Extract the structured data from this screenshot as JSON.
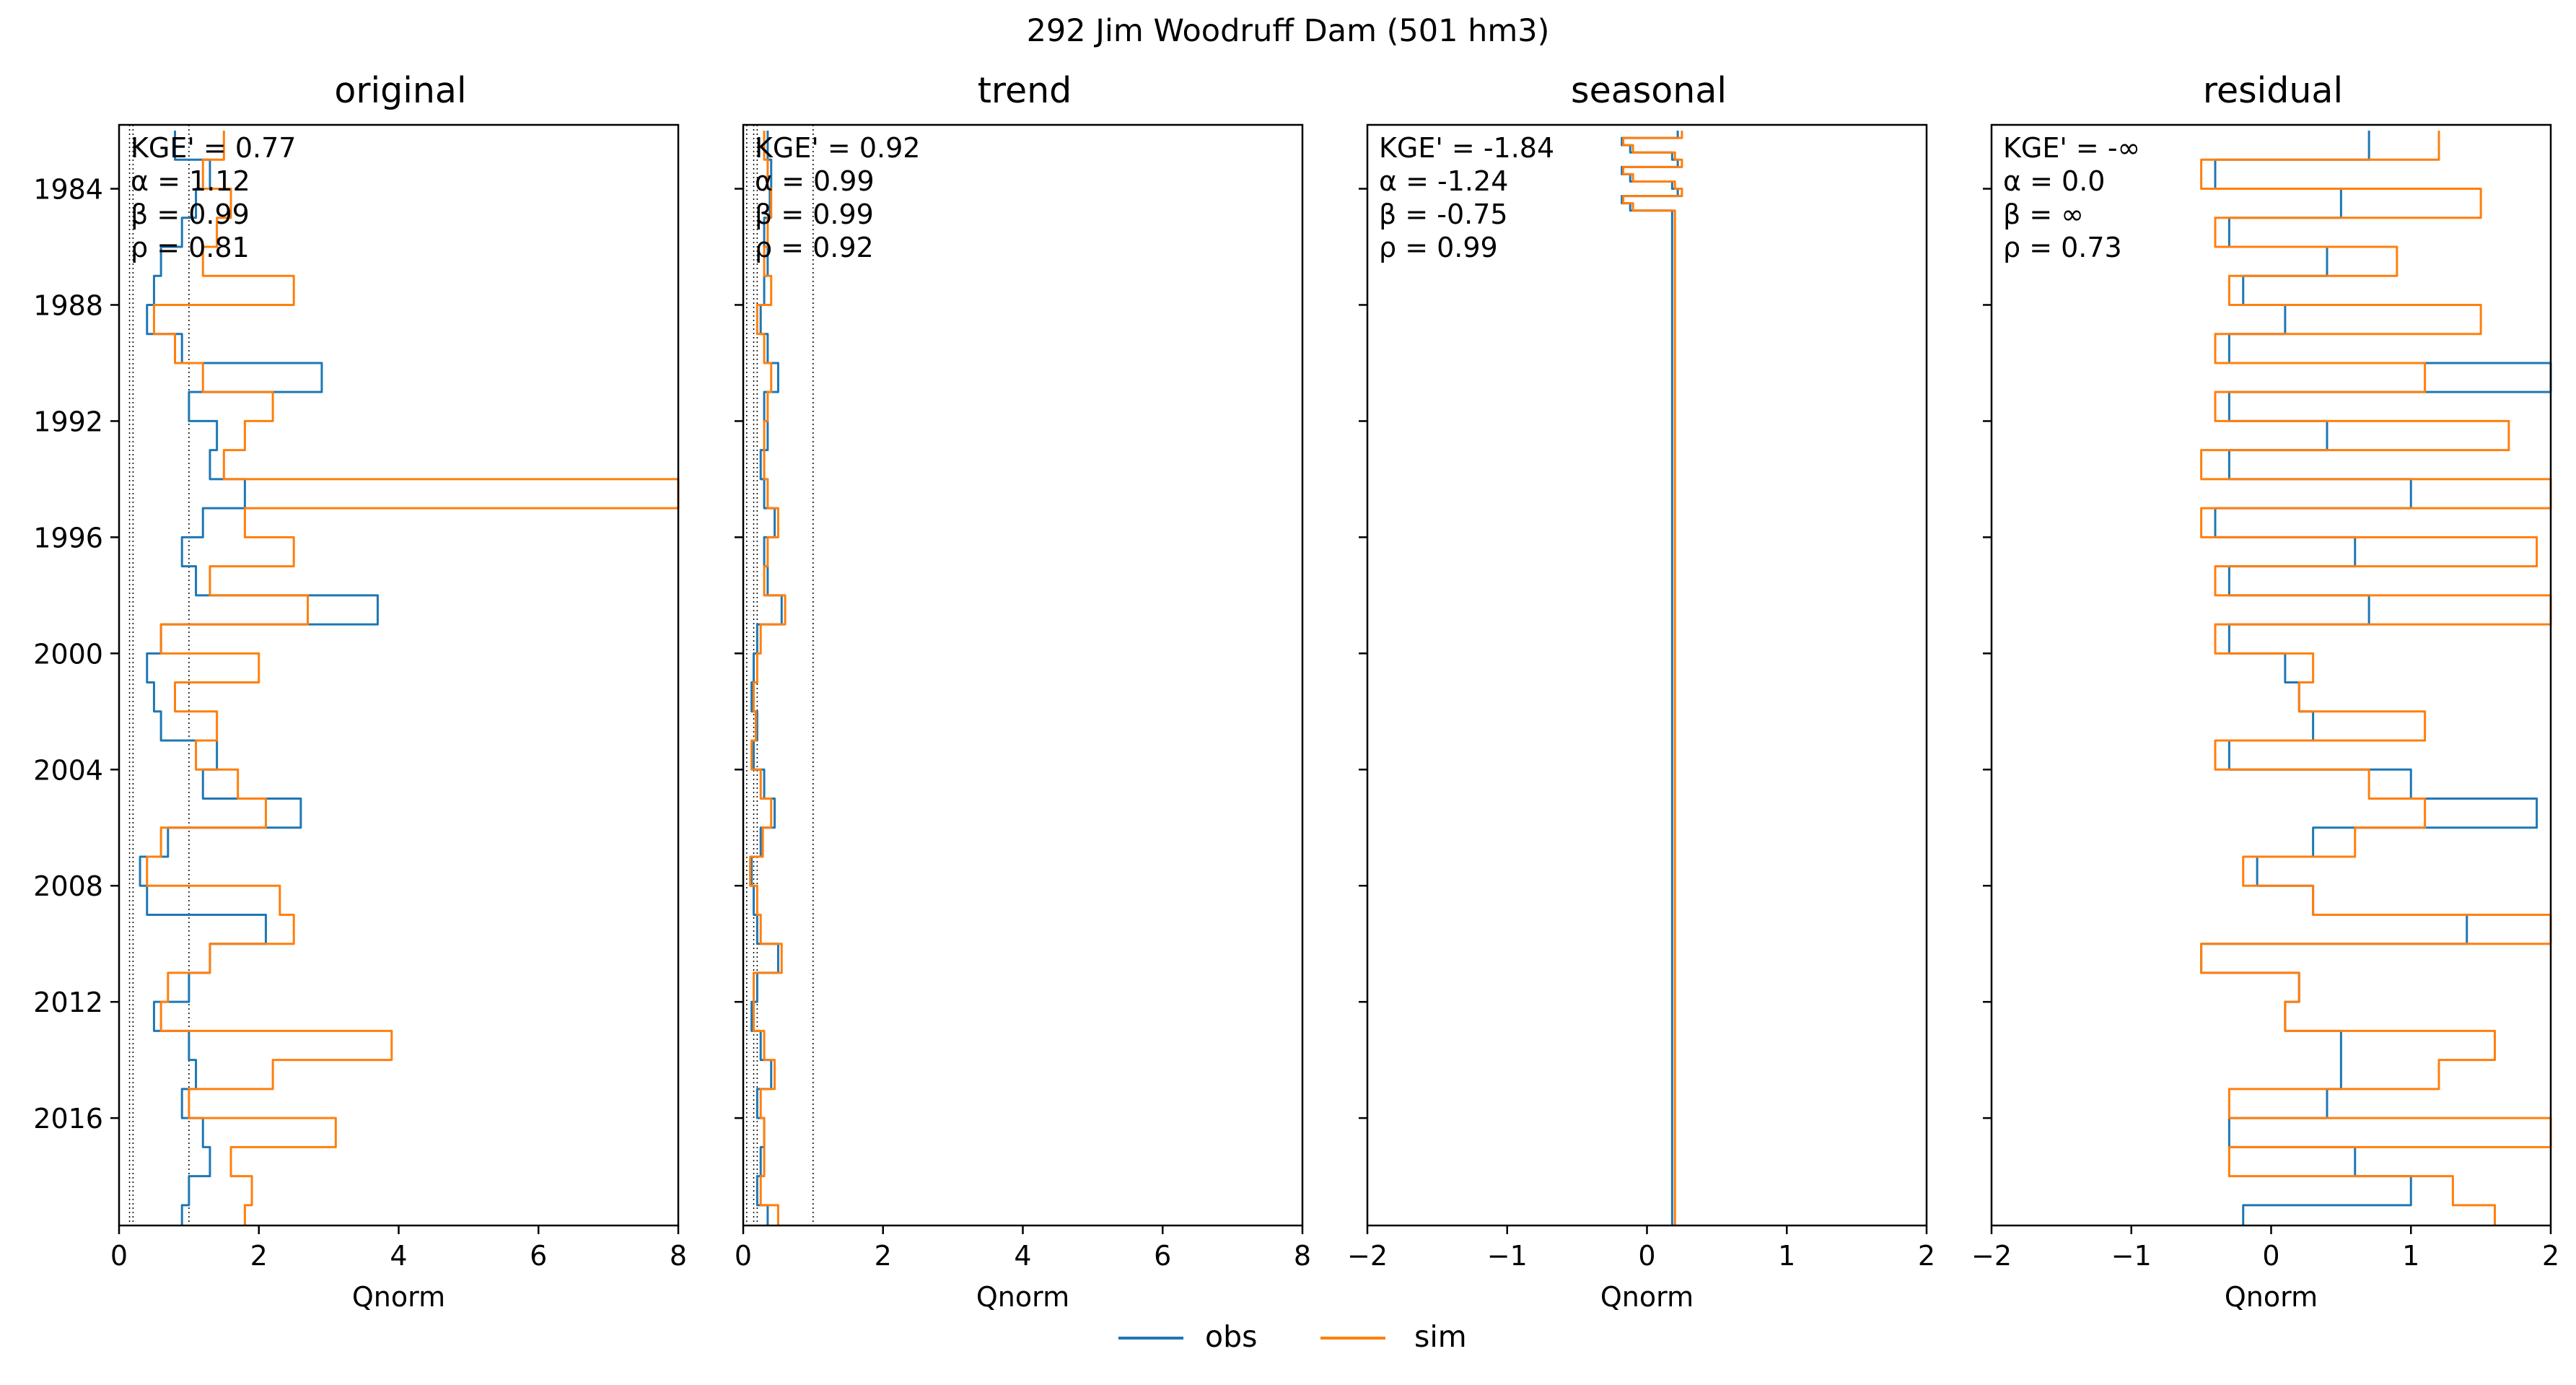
{
  "figure": {
    "suptitle": "292  Jim Woodruff Dam (501 hm3)"
  },
  "legend": {
    "items": [
      {
        "label": "obs",
        "color": "#1f77b4"
      },
      {
        "label": "sim",
        "color": "#ff7f0e"
      }
    ]
  },
  "chart_data": [
    {
      "type": "line",
      "title": "original",
      "xlabel": "Qnorm",
      "ylabel": "",
      "xlim": [
        0,
        8
      ],
      "ylim": [
        1981.8,
        2019.7
      ],
      "xticks": [
        "0",
        "2",
        "4",
        "6",
        "8"
      ],
      "yticks": [
        "1984",
        "1988",
        "1992",
        "1996",
        "2000",
        "2004",
        "2008",
        "2012",
        "2016"
      ],
      "ytick_values": [
        1984,
        1988,
        1992,
        1996,
        2000,
        2004,
        2008,
        2012,
        2016
      ],
      "reference_lines_x": [
        0.15,
        0.2,
        1.0
      ],
      "metrics": [
        "KGE' = 0.77",
        "α = 1.12",
        "β = 0.99",
        "ρ = 0.81"
      ],
      "series": [
        {
          "name": "obs",
          "color": "#1f77b4",
          "x": [
            1982,
            1983,
            1984,
            1985,
            1986,
            1987,
            1988,
            1989,
            1990,
            1991,
            1992,
            1993,
            1994,
            1995,
            1996,
            1997,
            1998,
            1999,
            2000,
            2001,
            2002,
            2003,
            2004,
            2005,
            2006,
            2007,
            2008,
            2009,
            2010,
            2011,
            2012,
            2013,
            2014,
            2015,
            2016,
            2017,
            2018,
            2019
          ],
          "y": [
            0.8,
            1.3,
            1.1,
            0.9,
            0.6,
            0.5,
            0.4,
            0.9,
            2.9,
            1.0,
            1.4,
            1.3,
            1.8,
            1.2,
            0.9,
            1.1,
            3.7,
            0.6,
            0.4,
            0.5,
            0.6,
            1.4,
            1.2,
            2.6,
            0.7,
            0.3,
            0.4,
            2.1,
            1.3,
            1.0,
            0.5,
            1.0,
            1.1,
            0.9,
            1.2,
            1.3,
            1.0,
            0.9
          ]
        },
        {
          "name": "sim",
          "color": "#ff7f0e",
          "x": [
            1982,
            1983,
            1984,
            1985,
            1986,
            1987,
            1988,
            1989,
            1990,
            1991,
            1992,
            1993,
            1994,
            1995,
            1996,
            1997,
            1998,
            1999,
            2000,
            2001,
            2002,
            2003,
            2004,
            2005,
            2006,
            2007,
            2008,
            2009,
            2010,
            2011,
            2012,
            2013,
            2014,
            2015,
            2016,
            2017,
            2018,
            2019
          ],
          "y": [
            1.5,
            1.2,
            1.6,
            1.4,
            1.2,
            2.5,
            0.5,
            0.8,
            1.2,
            2.2,
            1.8,
            1.5,
            8.0,
            1.8,
            2.5,
            1.3,
            2.7,
            0.6,
            2.0,
            0.8,
            1.4,
            1.1,
            1.7,
            2.1,
            0.6,
            0.4,
            2.3,
            2.5,
            1.3,
            0.7,
            0.6,
            3.9,
            2.2,
            1.0,
            3.1,
            1.6,
            1.9,
            1.8
          ]
        }
      ]
    },
    {
      "type": "line",
      "title": "trend",
      "xlabel": "Qnorm",
      "ylabel": "",
      "xlim": [
        0,
        8
      ],
      "ylim": [
        1981.8,
        2019.7
      ],
      "xticks": [
        "0",
        "2",
        "4",
        "6",
        "8"
      ],
      "yticks": [],
      "ytick_values": [
        1984,
        1988,
        1992,
        1996,
        2000,
        2004,
        2008,
        2012,
        2016
      ],
      "reference_lines_x": [
        0.05,
        0.15,
        0.2,
        1.0
      ],
      "metrics": [
        "KGE' = 0.92",
        "α = 0.99",
        "β = 0.99",
        "ρ = 0.92"
      ],
      "series": [
        {
          "name": "obs",
          "color": "#1f77b4",
          "x": [
            1982,
            1983,
            1984,
            1985,
            1986,
            1987,
            1988,
            1989,
            1990,
            1991,
            1992,
            1993,
            1994,
            1995,
            1996,
            1997,
            1998,
            1999,
            2000,
            2001,
            2002,
            2003,
            2004,
            2005,
            2006,
            2007,
            2008,
            2009,
            2010,
            2011,
            2012,
            2013,
            2014,
            2015,
            2016,
            2017,
            2018,
            2019
          ],
          "y": [
            0.35,
            0.4,
            0.38,
            0.3,
            0.35,
            0.3,
            0.25,
            0.35,
            0.5,
            0.3,
            0.35,
            0.25,
            0.3,
            0.45,
            0.3,
            0.35,
            0.55,
            0.2,
            0.15,
            0.12,
            0.2,
            0.15,
            0.3,
            0.45,
            0.25,
            0.12,
            0.15,
            0.2,
            0.5,
            0.2,
            0.12,
            0.25,
            0.4,
            0.2,
            0.3,
            0.25,
            0.2,
            0.35
          ]
        },
        {
          "name": "sim",
          "color": "#ff7f0e",
          "x": [
            1982,
            1983,
            1984,
            1985,
            1986,
            1987,
            1988,
            1989,
            1990,
            1991,
            1992,
            1993,
            1994,
            1995,
            1996,
            1997,
            1998,
            1999,
            2000,
            2001,
            2002,
            2003,
            2004,
            2005,
            2006,
            2007,
            2008,
            2009,
            2010,
            2011,
            2012,
            2013,
            2014,
            2015,
            2016,
            2017,
            2018,
            2019
          ],
          "y": [
            0.3,
            0.35,
            0.4,
            0.35,
            0.3,
            0.4,
            0.2,
            0.3,
            0.4,
            0.35,
            0.3,
            0.3,
            0.35,
            0.5,
            0.35,
            0.3,
            0.6,
            0.25,
            0.2,
            0.15,
            0.18,
            0.12,
            0.25,
            0.4,
            0.28,
            0.1,
            0.2,
            0.25,
            0.55,
            0.15,
            0.15,
            0.3,
            0.45,
            0.25,
            0.3,
            0.3,
            0.25,
            0.5
          ]
        }
      ]
    },
    {
      "type": "line",
      "title": "seasonal",
      "xlabel": "Qnorm",
      "ylabel": "",
      "xlim": [
        -2,
        2
      ],
      "ylim": [
        1981.8,
        2019.7
      ],
      "xticks": [
        "−2",
        "−1",
        "0",
        "1",
        "2"
      ],
      "yticks": [],
      "ytick_values": [
        1984,
        1988,
        1992,
        1996,
        2000,
        2004,
        2008,
        2012,
        2016
      ],
      "reference_lines_x": [],
      "metrics": [
        "KGE' = -1.84",
        "α = -1.24",
        "β = -0.75",
        "ρ = 0.99"
      ],
      "series": [
        {
          "name": "obs",
          "color": "#1f77b4",
          "x": [
            1982.0,
            1982.25,
            1982.5,
            1982.75,
            1983.0,
            1983.25,
            1983.5,
            1983.75,
            1984.0,
            1984.25,
            1984.5,
            1984.75
          ],
          "y": [
            0.22,
            -0.18,
            -0.12,
            0.18,
            0.22,
            -0.18,
            -0.12,
            0.18,
            0.22,
            -0.18,
            -0.12,
            0.18
          ]
        },
        {
          "name": "sim",
          "color": "#ff7f0e",
          "x": [
            1982.0,
            1982.25,
            1982.5,
            1982.75,
            1983.0,
            1983.25,
            1983.5,
            1983.75,
            1984.0,
            1984.25,
            1984.5,
            1984.75
          ],
          "y": [
            0.25,
            -0.17,
            -0.1,
            0.2,
            0.25,
            -0.17,
            -0.1,
            0.2,
            0.25,
            -0.17,
            -0.1,
            0.2
          ]
        }
      ]
    },
    {
      "type": "line",
      "title": "residual",
      "xlabel": "Qnorm",
      "ylabel": "",
      "xlim": [
        -2,
        2
      ],
      "ylim": [
        1981.8,
        2019.7
      ],
      "xticks": [
        "−2",
        "−1",
        "0",
        "1",
        "2"
      ],
      "yticks": [],
      "ytick_values": [
        1984,
        1988,
        1992,
        1996,
        2000,
        2004,
        2008,
        2012,
        2016
      ],
      "reference_lines_x": [],
      "metrics": [
        "KGE' = -∞",
        "α = 0.0",
        "β = ∞",
        "ρ = 0.73"
      ],
      "series": [
        {
          "name": "obs",
          "color": "#1f77b4",
          "x": [
            1982,
            1983,
            1984,
            1985,
            1986,
            1987,
            1988,
            1989,
            1990,
            1991,
            1992,
            1993,
            1994,
            1995,
            1996,
            1997,
            1998,
            1999,
            2000,
            2001,
            2002,
            2003,
            2004,
            2005,
            2006,
            2007,
            2008,
            2009,
            2010,
            2011,
            2012,
            2013,
            2014,
            2015,
            2016,
            2017,
            2018,
            2019
          ],
          "y": [
            0.7,
            -0.4,
            0.5,
            -0.3,
            0.4,
            -0.2,
            0.1,
            -0.3,
            2.0,
            -0.3,
            0.4,
            -0.3,
            1.0,
            -0.4,
            0.6,
            -0.3,
            0.7,
            -0.3,
            0.1,
            0.2,
            0.3,
            -0.3,
            1.0,
            1.9,
            0.3,
            -0.1,
            0.3,
            1.4,
            -0.5,
            0.2,
            0.1,
            0.5,
            0.5,
            0.4,
            -0.3,
            0.6,
            1.0,
            -0.2
          ]
        },
        {
          "name": "sim",
          "color": "#ff7f0e",
          "x": [
            1982,
            1983,
            1984,
            1985,
            1986,
            1987,
            1988,
            1989,
            1990,
            1991,
            1992,
            1993,
            1994,
            1995,
            1996,
            1997,
            1998,
            1999,
            2000,
            2001,
            2002,
            2003,
            2004,
            2005,
            2006,
            2007,
            2008,
            2009,
            2010,
            2011,
            2012,
            2013,
            2014,
            2015,
            2016,
            2017,
            2018,
            2019
          ],
          "y": [
            1.2,
            -0.5,
            1.5,
            -0.4,
            0.9,
            -0.3,
            1.5,
            -0.4,
            1.1,
            -0.4,
            1.7,
            -0.5,
            2.0,
            -0.5,
            1.9,
            -0.4,
            2.0,
            -0.4,
            0.3,
            0.2,
            1.1,
            -0.4,
            0.7,
            1.1,
            0.6,
            -0.2,
            0.3,
            2.0,
            -0.5,
            0.2,
            0.1,
            1.6,
            1.2,
            -0.3,
            2.0,
            -0.3,
            1.3,
            1.6
          ]
        }
      ]
    }
  ]
}
